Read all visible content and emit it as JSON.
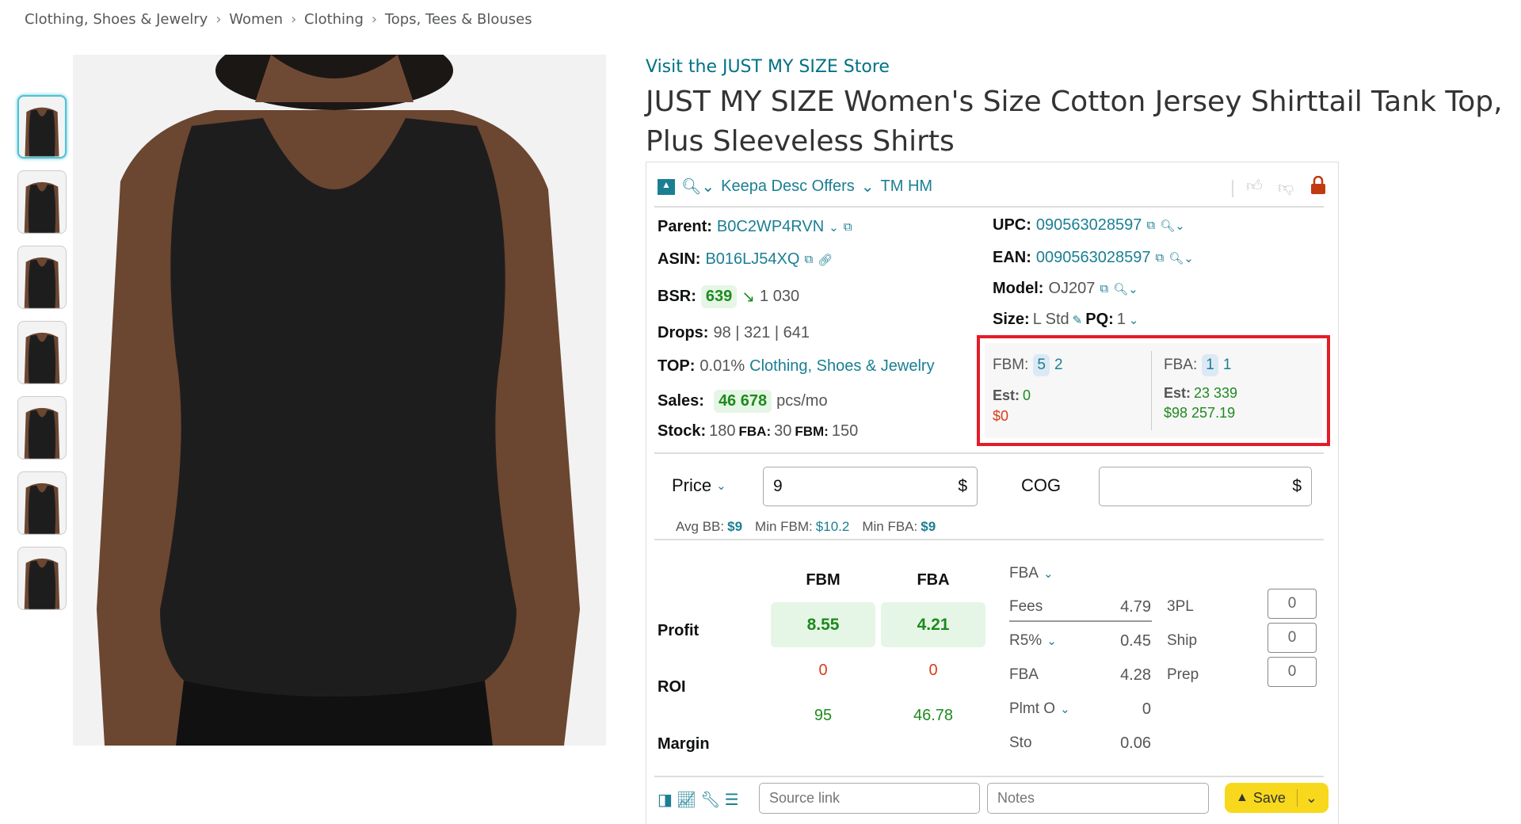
{
  "breadcrumb": [
    "Clothing, Shoes & Jewelry",
    "Women",
    "Clothing",
    "Tops, Tees & Blouses"
  ],
  "store_link": "Visit the JUST MY SIZE Store",
  "title": "JUST MY SIZE Women's Size Cotton Jersey Shirttail Tank Top, Plus Sleeveless Shirts",
  "thumbnail_count": 7,
  "toolbar": {
    "links": "Keepa Desc Offers",
    "extra": "TM HM"
  },
  "info": {
    "parent_label": "Parent:",
    "parent": "B0C2WP4RVN",
    "asin_label": "ASIN:",
    "asin": "B016LJ54XQ",
    "bsr_label": "BSR:",
    "bsr": "639",
    "bsr_trend": "1 030",
    "drops_label": "Drops:",
    "drops": "98 | 321 | 641",
    "top_label": "TOP:",
    "top_pct": "0.01%",
    "top_cat": "Clothing, Shoes & Jewelry",
    "sales_label": "Sales:",
    "sales": "46 678",
    "sales_unit": "pcs/mo",
    "stock_label": "Stock:",
    "stock": "180",
    "stock_fba_label": "FBA:",
    "stock_fba": "30",
    "stock_fbm_label": "FBM:",
    "stock_fbm": "150",
    "upc_label": "UPC:",
    "upc": "090563028597",
    "ean_label": "EAN:",
    "ean": "0090563028597",
    "model_label": "Model:",
    "model": "OJ207",
    "size_label": "Size:",
    "size": "L Std",
    "pq_label": "PQ:",
    "pq": "1"
  },
  "offers": {
    "fbm_label": "FBM:",
    "fbm_a": "5",
    "fbm_b": "2",
    "fbm_est_label": "Est:",
    "fbm_est": "0",
    "fbm_rev": "$0",
    "fba_label": "FBA:",
    "fba_a": "1",
    "fba_b": "1",
    "fba_est_label": "Est:",
    "fba_est": "23 339",
    "fba_rev": "$98 257.19"
  },
  "pricing": {
    "price_label": "Price",
    "price_value": "9",
    "currency": "$",
    "cog_label": "COG",
    "cog_value": "",
    "avg_bb_label": "Avg BB:",
    "avg_bb": "$9",
    "min_fbm_label": "Min FBM:",
    "min_fbm": "$10.2",
    "min_fba_label": "Min FBA:",
    "min_fba": "$9"
  },
  "calc": {
    "col_fbm": "FBM",
    "col_fba": "FBA",
    "profit_label": "Profit",
    "profit_fbm": "8.55",
    "profit_fba": "4.21",
    "roi_label": "ROI",
    "roi_fbm": "0",
    "roi_fba": "0",
    "margin_label": "Margin",
    "margin_fbm": "95",
    "margin_fba": "46.78",
    "mode": "FBA",
    "fees": [
      {
        "label": "Fees",
        "value": "4.79"
      },
      {
        "label": "R5%",
        "value": "0.45"
      },
      {
        "label": "FBA",
        "value": "4.28"
      },
      {
        "label": "Plmt O",
        "value": "0"
      },
      {
        "label": "Sto",
        "value": "0.06"
      }
    ],
    "extras": [
      {
        "label": "3PL",
        "value": "0"
      },
      {
        "label": "Ship",
        "value": "0"
      },
      {
        "label": "Prep",
        "value": "0"
      }
    ]
  },
  "footer": {
    "source_placeholder": "Source link",
    "notes_placeholder": "Notes",
    "save_label": "Save"
  },
  "colors": {
    "accent": "#1a7f93",
    "profit_green": "#1e8a1e",
    "negative_red": "#d63c1b",
    "highlight_box": "#e41c2a",
    "save_yellow": "#f8d81c"
  }
}
